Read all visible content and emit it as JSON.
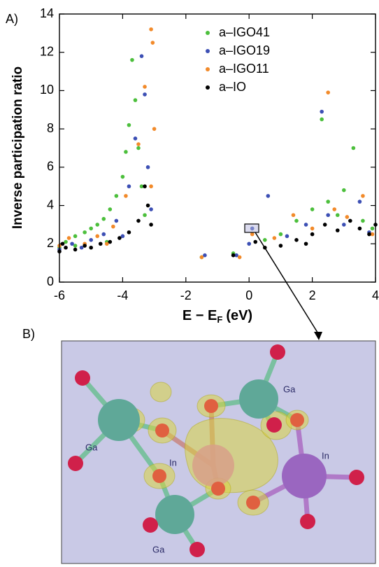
{
  "chart_data": {
    "type": "scatter",
    "ylabel": "Inverse participation ratio",
    "xlabel": {
      "main": "E − E",
      "sub": "F",
      "unit": "(eV)"
    },
    "xlim": [
      -6,
      4
    ],
    "xticks": [
      -6,
      -4,
      -2,
      0,
      2,
      4
    ],
    "ylim": [
      0,
      14
    ],
    "yticks": [
      0,
      2,
      4,
      6,
      8,
      10,
      12,
      14
    ],
    "legend": "upper right",
    "series": [
      {
        "name": "a–IGO41",
        "color": "#4cbf3c",
        "x": [
          -6,
          -5.8,
          -5.5,
          -5.2,
          -5,
          -4.8,
          -4.6,
          -4.4,
          -4.2,
          -4.0,
          -3.9,
          -3.8,
          -3.7,
          -3.6,
          -3.5,
          -3.4,
          -3.3,
          -0.5,
          0.1,
          0.5,
          1,
          1.5,
          2,
          2.3,
          2.5,
          2.8,
          3,
          3.3,
          3.6,
          3.9,
          -1.5,
          -5.5,
          -4.5
        ],
        "y": [
          1.8,
          2.1,
          2.4,
          2.6,
          2.8,
          3.0,
          3.3,
          3.8,
          4.5,
          5.5,
          6.8,
          8.2,
          11.6,
          9.5,
          7.0,
          5.0,
          3.5,
          1.5,
          2.8,
          2.2,
          2.5,
          3.2,
          3.8,
          8.5,
          4.2,
          3.5,
          4.8,
          7.0,
          3.2,
          2.8,
          1.3,
          1.9,
          2.1
        ]
      },
      {
        "name": "a–IGO19",
        "color": "#3c4fb4",
        "x": [
          -6,
          -5.6,
          -5,
          -4.6,
          -4.2,
          -3.8,
          -3.6,
          -3.4,
          -3.3,
          -3.2,
          -3.1,
          -1.4,
          -0.4,
          0,
          0.1,
          0.6,
          1.2,
          1.8,
          2.3,
          2.5,
          3,
          3.5,
          3.8,
          -5.3,
          -4
        ],
        "y": [
          1.7,
          2.0,
          2.2,
          2.5,
          3.2,
          5.0,
          7.5,
          11.8,
          9.8,
          6.0,
          3.8,
          1.4,
          1.4,
          2.0,
          2.8,
          4.5,
          2.4,
          3.0,
          8.9,
          3.5,
          3.0,
          4.2,
          2.6,
          1.8,
          2.4
        ]
      },
      {
        "name": "a–IGO11",
        "color": "#f28a2a",
        "x": [
          -6,
          -5.7,
          -5.2,
          -4.8,
          -4.3,
          -3.9,
          -3.5,
          -3.3,
          -3.1,
          -3.05,
          -3.0,
          -3.1,
          -1.5,
          -0.3,
          0.1,
          0.8,
          1.4,
          2,
          2.5,
          2.7,
          3.1,
          3.6,
          3.9,
          -4.5
        ],
        "y": [
          1.9,
          2.3,
          2.0,
          2.4,
          2.9,
          4.5,
          7.2,
          10.2,
          13.2,
          12.5,
          8.0,
          5.0,
          1.3,
          1.3,
          2.5,
          2.3,
          3.5,
          2.8,
          9.9,
          3.8,
          3.4,
          4.5,
          2.5,
          2.0
        ]
      },
      {
        "name": "a–IO",
        "color": "#000000",
        "x": [
          -6,
          -5.8,
          -5.5,
          -5.2,
          -5,
          -4.7,
          -4.4,
          -4.1,
          -3.8,
          -3.5,
          -3.3,
          -3.2,
          -3.1,
          -0.5,
          0.2,
          0.5,
          1,
          1.5,
          2,
          2.4,
          2.8,
          3.2,
          3.5,
          3.8,
          4,
          1.8,
          -5.9
        ],
        "y": [
          1.6,
          1.8,
          1.7,
          1.9,
          1.8,
          2.0,
          2.1,
          2.3,
          2.6,
          3.2,
          5.0,
          4.0,
          3.0,
          1.4,
          2.1,
          1.8,
          1.9,
          2.2,
          2.5,
          3.0,
          2.7,
          3.2,
          2.8,
          2.5,
          3.0,
          2.0,
          2.0
        ]
      }
    ]
  },
  "panel_labels": [
    "A)",
    "B)"
  ],
  "atom_labels": [
    "Ga",
    "Ga",
    "In",
    "In",
    "Ga"
  ]
}
